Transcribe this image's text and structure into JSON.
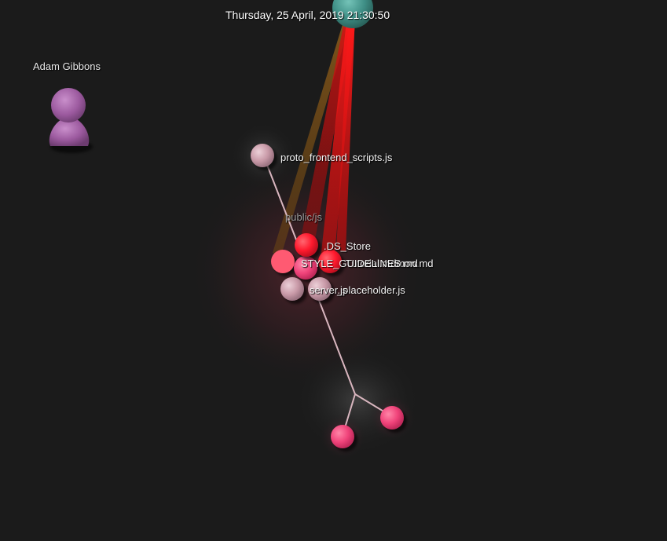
{
  "header": {
    "datetime": "Thursday, 25 April, 2019 21:30:50"
  },
  "user": {
    "name": "Adam Gibbons",
    "icon": "person-icon",
    "color": "#9c5a9f"
  },
  "directory": {
    "label": "public/js"
  },
  "files": {
    "proto": "proto_frontend_scripts.js",
    "ds_store": ".DS_Store",
    "style_guidelines": "STYLE_GUIDELINES.md",
    "tutorial": "Tutorial.mdmon.md",
    "server": "server.js",
    "placeholder": "_placeholder.js"
  },
  "colors": {
    "background": "#1b1b1b",
    "modified_node": "#ff1a2e",
    "added_node": "#f0437a",
    "file_node": "#c99aa8",
    "top_node": "#3f8f86",
    "edge": "#d9b6bf",
    "beam": "#e01010"
  }
}
